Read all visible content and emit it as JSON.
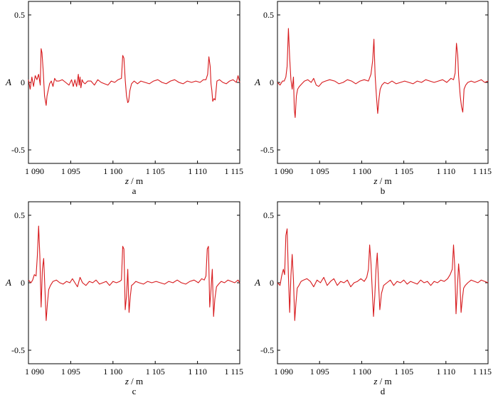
{
  "panel_labels": [
    "a",
    "b",
    "c",
    "d"
  ],
  "colors": {
    "series": "#d7191c",
    "axis": "#000000"
  },
  "chart_data": [
    {
      "type": "line",
      "label": "a",
      "xlabel_var": "z",
      "xlabel_unit": "m",
      "ylabel": "A",
      "xlim": [
        1090,
        1115
      ],
      "ylim": [
        -0.6,
        0.6
      ],
      "xticks": [
        1090,
        1095,
        1100,
        1105,
        1110,
        1115
      ],
      "xtick_labels": [
        "1 090",
        "1 095",
        "1 100",
        "1 105",
        "1 110",
        "1 115"
      ],
      "yticks": [
        0.5,
        0,
        -0.5
      ],
      "ytick_labels": [
        "0.5",
        "0",
        "-0.5"
      ],
      "grid": false,
      "series": [
        {
          "x": [
            1090,
            1090.2,
            1090.4,
            1090.6,
            1090.8,
            1091,
            1091.2,
            1091.4,
            1091.5,
            1091.6,
            1091.75,
            1091.9,
            1092.1,
            1092.2,
            1092.3,
            1092.5,
            1092.7,
            1092.9,
            1093.1,
            1093.3,
            1093.6,
            1094,
            1094.4,
            1094.8,
            1095.1,
            1095.3,
            1095.5,
            1095.7,
            1095.9,
            1096,
            1096.1,
            1096.2,
            1096.35,
            1096.5,
            1096.7,
            1097,
            1097.4,
            1097.8,
            1098.2,
            1098.6,
            1099,
            1099.4,
            1099.8,
            1100.2,
            1100.6,
            1101,
            1101.15,
            1101.3,
            1101.45,
            1101.6,
            1101.75,
            1101.85,
            1102,
            1102.2,
            1102.5,
            1102.9,
            1103.3,
            1103.8,
            1104.3,
            1104.8,
            1105.3,
            1105.8,
            1106.3,
            1106.8,
            1107.3,
            1107.8,
            1108.3,
            1108.8,
            1109.3,
            1109.8,
            1110.3,
            1110.7,
            1111,
            1111.2,
            1111.35,
            1111.5,
            1111.6,
            1111.7,
            1111.8,
            1111.95,
            1112.1,
            1112.3,
            1112.6,
            1113,
            1113.4,
            1113.8,
            1114.2,
            1114.6,
            1114.8,
            1115
          ],
          "y": [
            0.02,
            -0.05,
            0.04,
            -0.03,
            0.05,
            0.02,
            0.06,
            -0.02,
            0.25,
            0.22,
            0.08,
            -0.1,
            -0.17,
            -0.1,
            -0.07,
            -0.01,
            0.01,
            -0.03,
            0.03,
            0.01,
            0.01,
            0.02,
            0.0,
            -0.02,
            0.02,
            -0.03,
            0.02,
            -0.03,
            0.06,
            -0.02,
            0.04,
            -0.04,
            0.02,
            0.0,
            -0.01,
            0.01,
            0.01,
            -0.02,
            0.02,
            0.0,
            -0.01,
            -0.02,
            0.01,
            0.0,
            0.02,
            0.03,
            0.2,
            0.18,
            0.02,
            -0.1,
            -0.15,
            -0.14,
            -0.06,
            -0.01,
            0.01,
            -0.01,
            0.01,
            0.0,
            -0.01,
            0.01,
            0.02,
            0.0,
            -0.01,
            0.01,
            0.02,
            0.0,
            -0.01,
            0.01,
            0.0,
            0.01,
            0.0,
            0.02,
            0.02,
            0.06,
            0.19,
            0.12,
            -0.01,
            -0.06,
            -0.14,
            -0.12,
            -0.13,
            0.01,
            0.02,
            0.0,
            -0.01,
            0.01,
            0.02,
            0.0,
            0.05,
            0.0
          ]
        }
      ]
    },
    {
      "type": "line",
      "label": "b",
      "xlabel_var": "z",
      "xlabel_unit": "m",
      "ylabel": "A",
      "xlim": [
        1090,
        1115
      ],
      "ylim": [
        -0.6,
        0.6
      ],
      "xticks": [
        1090,
        1095,
        1100,
        1105,
        1110,
        1115
      ],
      "xtick_labels": [
        "1 090",
        "1 095",
        "1 100",
        "1 105",
        "1 110",
        "1 115"
      ],
      "yticks": [
        0.5,
        0,
        -0.5
      ],
      "ytick_labels": [
        "0.5",
        "0",
        "-0.5"
      ],
      "grid": false,
      "series": [
        {
          "x": [
            1090,
            1090.3,
            1090.6,
            1090.8,
            1091,
            1091.15,
            1091.3,
            1091.45,
            1091.6,
            1091.75,
            1091.9,
            1092,
            1092.1,
            1092.25,
            1092.4,
            1092.6,
            1092.9,
            1093.2,
            1093.6,
            1094,
            1094.3,
            1094.6,
            1094.9,
            1095.3,
            1095.7,
            1096.2,
            1096.8,
            1097.3,
            1097.8,
            1098.3,
            1098.8,
            1099.3,
            1099.8,
            1100.3,
            1100.8,
            1101.1,
            1101.3,
            1101.45,
            1101.6,
            1101.75,
            1101.9,
            1102.05,
            1102.2,
            1102.4,
            1102.7,
            1103.1,
            1103.6,
            1104.1,
            1104.6,
            1105.1,
            1105.6,
            1106.1,
            1106.6,
            1107.1,
            1107.6,
            1108.1,
            1108.6,
            1109.1,
            1109.6,
            1110.1,
            1110.6,
            1110.9,
            1111.1,
            1111.25,
            1111.4,
            1111.5,
            1111.6,
            1111.7,
            1111.85,
            1112,
            1112.15,
            1112.35,
            1112.6,
            1113,
            1113.4,
            1113.8,
            1114.2,
            1114.6,
            1115
          ],
          "y": [
            0.0,
            -0.02,
            0.01,
            0.01,
            0.04,
            0.12,
            0.4,
            0.18,
            0.02,
            -0.05,
            0.04,
            -0.2,
            -0.26,
            -0.1,
            -0.05,
            -0.03,
            -0.01,
            0.01,
            0.02,
            0.0,
            0.03,
            -0.02,
            -0.03,
            0.0,
            0.01,
            0.02,
            0.01,
            -0.01,
            0.0,
            0.02,
            0.01,
            -0.01,
            0.01,
            0.02,
            0.01,
            0.06,
            0.16,
            0.32,
            0.05,
            -0.1,
            -0.23,
            -0.12,
            -0.05,
            -0.02,
            0.0,
            -0.01,
            0.01,
            -0.01,
            0.0,
            0.01,
            0.0,
            -0.01,
            0.01,
            0.0,
            0.02,
            0.01,
            0.0,
            0.01,
            0.02,
            0.0,
            0.03,
            0.02,
            0.07,
            0.29,
            0.2,
            0.05,
            -0.02,
            -0.1,
            -0.18,
            -0.22,
            -0.05,
            -0.02,
            0.0,
            0.01,
            0.0,
            0.01,
            0.02,
            0.0,
            0.01
          ]
        }
      ]
    },
    {
      "type": "line",
      "label": "c",
      "xlabel_var": "z",
      "xlabel_unit": "m",
      "ylabel": "A",
      "xlim": [
        1090,
        1115
      ],
      "ylim": [
        -0.6,
        0.6
      ],
      "xticks": [
        1090,
        1095,
        1100,
        1105,
        1110,
        1115
      ],
      "xtick_labels": [
        "1 090",
        "1 095",
        "1 100",
        "1 105",
        "1 110",
        "1 115"
      ],
      "yticks": [
        0.5,
        0,
        -0.5
      ],
      "ytick_labels": [
        "0.5",
        "0",
        "-0.5"
      ],
      "grid": false,
      "series": [
        {
          "x": [
            1090,
            1090.3,
            1090.5,
            1090.7,
            1090.9,
            1091.05,
            1091.2,
            1091.35,
            1091.5,
            1091.65,
            1091.8,
            1091.95,
            1092.1,
            1092.25,
            1092.4,
            1092.6,
            1092.9,
            1093.3,
            1093.7,
            1094.1,
            1094.5,
            1094.9,
            1095.2,
            1095.5,
            1095.8,
            1096.1,
            1096.4,
            1096.8,
            1097.2,
            1097.6,
            1098,
            1098.4,
            1098.8,
            1099.2,
            1099.6,
            1100,
            1100.4,
            1100.8,
            1101,
            1101.15,
            1101.3,
            1101.45,
            1101.6,
            1101.75,
            1101.9,
            1102.05,
            1102.2,
            1102.4,
            1102.7,
            1103.1,
            1103.6,
            1104.1,
            1104.6,
            1105.1,
            1105.6,
            1106.1,
            1106.6,
            1107.1,
            1107.6,
            1108.1,
            1108.6,
            1109.1,
            1109.6,
            1110.1,
            1110.5,
            1110.8,
            1111,
            1111.15,
            1111.3,
            1111.45,
            1111.6,
            1111.75,
            1111.9,
            1112.05,
            1112.25,
            1112.5,
            1112.8,
            1113.2,
            1113.6,
            1114,
            1114.4,
            1114.8,
            1115
          ],
          "y": [
            0.02,
            0.0,
            0.02,
            0.06,
            0.05,
            0.2,
            0.42,
            0.2,
            -0.18,
            0.1,
            0.18,
            -0.05,
            -0.28,
            -0.15,
            -0.05,
            -0.02,
            0.01,
            0.02,
            0.0,
            -0.01,
            0.01,
            0.0,
            0.03,
            0.0,
            -0.03,
            0.04,
            0.0,
            -0.02,
            0.01,
            0.0,
            0.02,
            -0.01,
            0.0,
            0.01,
            -0.02,
            0.01,
            0.0,
            0.01,
            0.02,
            0.27,
            0.25,
            -0.2,
            -0.1,
            0.1,
            -0.22,
            -0.1,
            -0.02,
            -0.01,
            0.01,
            0.0,
            -0.01,
            0.01,
            0.0,
            0.01,
            0.0,
            -0.01,
            0.01,
            0.0,
            0.02,
            0.0,
            -0.01,
            0.01,
            0.02,
            0.0,
            0.03,
            0.02,
            0.05,
            0.25,
            0.27,
            -0.18,
            -0.05,
            0.1,
            -0.25,
            -0.12,
            -0.03,
            -0.01,
            0.01,
            0.0,
            0.02,
            0.01,
            0.0,
            0.02,
            0.0
          ]
        }
      ]
    },
    {
      "type": "line",
      "label": "d",
      "xlabel_var": "z",
      "xlabel_unit": "m",
      "ylabel": "A",
      "xlim": [
        1090,
        1115
      ],
      "ylim": [
        -0.6,
        0.6
      ],
      "xticks": [
        1090,
        1095,
        1100,
        1105,
        1110,
        1115
      ],
      "xtick_labels": [
        "1 090",
        "1 095",
        "1 100",
        "1 105",
        "1 110",
        "1 115"
      ],
      "yticks": [
        0.5,
        0,
        -0.5
      ],
      "ytick_labels": [
        "0.5",
        "0",
        "-0.5"
      ],
      "grid": false,
      "series": [
        {
          "x": [
            1090,
            1090.3,
            1090.5,
            1090.7,
            1090.85,
            1091,
            1091.15,
            1091.3,
            1091.45,
            1091.6,
            1091.75,
            1091.9,
            1092.05,
            1092.2,
            1092.35,
            1092.55,
            1092.8,
            1093.1,
            1093.5,
            1093.9,
            1094.3,
            1094.7,
            1095.1,
            1095.5,
            1095.9,
            1096.3,
            1096.7,
            1097.1,
            1097.5,
            1097.9,
            1098.3,
            1098.7,
            1099.1,
            1099.5,
            1099.9,
            1100.3,
            1100.6,
            1100.8,
            1100.95,
            1101.1,
            1101.25,
            1101.4,
            1101.55,
            1101.7,
            1101.85,
            1102,
            1102.15,
            1102.35,
            1102.6,
            1103,
            1103.4,
            1103.8,
            1104.2,
            1104.6,
            1105,
            1105.4,
            1105.8,
            1106.2,
            1106.6,
            1107,
            1107.4,
            1107.8,
            1108.2,
            1108.6,
            1109,
            1109.4,
            1109.8,
            1110.2,
            1110.5,
            1110.75,
            1110.9,
            1111.05,
            1111.2,
            1111.35,
            1111.5,
            1111.65,
            1111.8,
            1111.95,
            1112.1,
            1112.3,
            1112.6,
            1113,
            1113.4,
            1113.8,
            1114.2,
            1114.6,
            1115
          ],
          "y": [
            0.0,
            -0.02,
            0.05,
            0.1,
            0.06,
            0.35,
            0.4,
            0.05,
            -0.22,
            0.05,
            0.21,
            0.02,
            -0.28,
            -0.15,
            -0.04,
            -0.02,
            0.01,
            0.02,
            0.03,
            0.01,
            -0.03,
            0.02,
            0.0,
            0.04,
            -0.02,
            0.01,
            0.03,
            -0.02,
            0.01,
            0.0,
            0.02,
            -0.03,
            0.0,
            0.01,
            0.03,
            0.01,
            0.04,
            0.1,
            0.28,
            0.15,
            -0.05,
            -0.25,
            -0.1,
            0.1,
            0.22,
            0.0,
            -0.2,
            -0.08,
            -0.02,
            0.0,
            0.02,
            -0.02,
            0.01,
            0.0,
            0.02,
            -0.01,
            0.01,
            0.0,
            -0.01,
            0.02,
            0.0,
            0.01,
            -0.02,
            0.01,
            0.0,
            0.02,
            0.01,
            0.03,
            0.06,
            0.1,
            0.28,
            0.12,
            -0.23,
            -0.05,
            0.14,
            0.03,
            -0.22,
            -0.12,
            -0.04,
            -0.02,
            0.0,
            0.02,
            0.01,
            0.0,
            0.02,
            0.01,
            0.0
          ]
        }
      ]
    }
  ]
}
